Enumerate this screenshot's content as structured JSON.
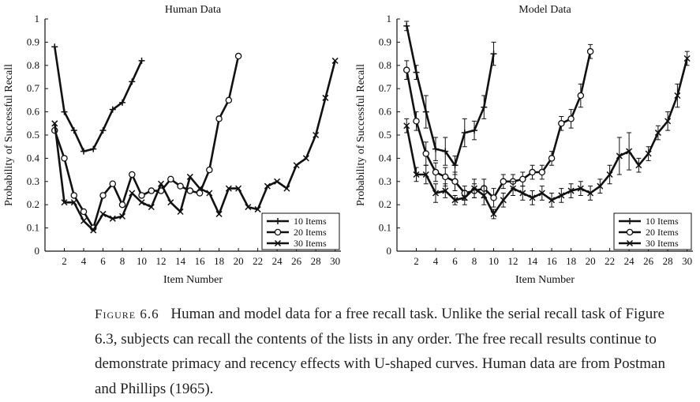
{
  "chart_data": [
    {
      "type": "line",
      "title": "Human Data",
      "xlabel": "Item Number",
      "ylabel": "Probability of Successful Recall",
      "xlim": [
        0,
        30.6
      ],
      "ylim": [
        0,
        1
      ],
      "xticks": [
        2,
        4,
        6,
        8,
        10,
        12,
        14,
        16,
        18,
        20,
        22,
        24,
        26,
        28,
        30
      ],
      "yticks": [
        0,
        0.1,
        0.2,
        0.3,
        0.4,
        0.5,
        0.6,
        0.7,
        0.8,
        0.9,
        1
      ],
      "ytick_labels": [
        "0",
        "0.1",
        "0.2",
        "0.3",
        "0.4",
        "0.5",
        "0.6",
        "0.7",
        "0.8",
        "0.9",
        "1"
      ],
      "legend_position": "bottom-right",
      "series": [
        {
          "name": "10 Items",
          "marker": "plus",
          "x": [
            1,
            2,
            3,
            4,
            5,
            6,
            7,
            8,
            9,
            10
          ],
          "values": [
            0.88,
            0.6,
            0.52,
            0.43,
            0.44,
            0.52,
            0.61,
            0.64,
            0.73,
            0.82
          ]
        },
        {
          "name": "20 Items",
          "marker": "circle",
          "x": [
            1,
            2,
            3,
            4,
            5,
            6,
            7,
            8,
            9,
            10,
            11,
            12,
            13,
            14,
            15,
            16,
            17,
            18,
            19,
            20
          ],
          "values": [
            0.52,
            0.4,
            0.24,
            0.17,
            0.1,
            0.24,
            0.29,
            0.2,
            0.33,
            0.24,
            0.26,
            0.26,
            0.31,
            0.28,
            0.26,
            0.25,
            0.35,
            0.57,
            0.65,
            0.84
          ]
        },
        {
          "name": "30 Items",
          "marker": "x",
          "x": [
            1,
            2,
            3,
            4,
            5,
            6,
            7,
            8,
            9,
            10,
            11,
            12,
            13,
            14,
            15,
            16,
            17,
            18,
            19,
            20,
            21,
            22,
            23,
            24,
            25,
            26,
            27,
            28,
            29,
            30
          ],
          "values": [
            0.55,
            0.21,
            0.21,
            0.13,
            0.09,
            0.16,
            0.14,
            0.15,
            0.25,
            0.21,
            0.19,
            0.29,
            0.21,
            0.17,
            0.32,
            0.27,
            0.25,
            0.16,
            0.27,
            0.27,
            0.19,
            0.18,
            0.28,
            0.3,
            0.27,
            0.37,
            0.4,
            0.5,
            0.66,
            0.82
          ]
        }
      ]
    },
    {
      "type": "line",
      "title": "Model Data",
      "xlabel": "Item Number",
      "ylabel": "Probability of Successful Recall",
      "xlim": [
        0,
        30.6
      ],
      "ylim": [
        0,
        1
      ],
      "xticks": [
        2,
        4,
        6,
        8,
        10,
        12,
        14,
        16,
        18,
        20,
        22,
        24,
        26,
        28,
        30
      ],
      "yticks": [
        0,
        0.1,
        0.2,
        0.3,
        0.4,
        0.5,
        0.6,
        0.7,
        0.8,
        0.9,
        1
      ],
      "ytick_labels": [
        "0",
        "0.1",
        "0.2",
        "0.3",
        "0.4",
        "0.5",
        "0.6",
        "0.7",
        "0.8",
        "0.9",
        "1"
      ],
      "legend_position": "bottom-right",
      "error_bars": true,
      "series": [
        {
          "name": "10 Items",
          "marker": "plus",
          "x": [
            1,
            2,
            3,
            4,
            5,
            6,
            7,
            8,
            9,
            10
          ],
          "values": [
            0.97,
            0.77,
            0.6,
            0.44,
            0.43,
            0.37,
            0.51,
            0.52,
            0.62,
            0.85
          ],
          "errors": [
            0.02,
            0.03,
            0.07,
            0.05,
            0.06,
            0.04,
            0.06,
            0.04,
            0.05,
            0.05
          ]
        },
        {
          "name": "20 Items",
          "marker": "circle",
          "x": [
            1,
            2,
            3,
            4,
            5,
            6,
            7,
            8,
            9,
            10,
            11,
            12,
            13,
            14,
            15,
            16,
            17,
            18,
            19,
            20
          ],
          "values": [
            0.78,
            0.56,
            0.42,
            0.34,
            0.32,
            0.3,
            0.25,
            0.26,
            0.27,
            0.23,
            0.3,
            0.3,
            0.31,
            0.34,
            0.34,
            0.4,
            0.55,
            0.57,
            0.67,
            0.86
          ],
          "errors": [
            0.04,
            0.04,
            0.05,
            0.04,
            0.04,
            0.04,
            0.03,
            0.03,
            0.04,
            0.04,
            0.03,
            0.03,
            0.03,
            0.03,
            0.03,
            0.03,
            0.03,
            0.04,
            0.05,
            0.03
          ]
        },
        {
          "name": "30 Items",
          "marker": "x",
          "x": [
            1,
            2,
            3,
            4,
            5,
            6,
            7,
            8,
            9,
            10,
            11,
            12,
            13,
            14,
            15,
            16,
            17,
            18,
            19,
            20,
            21,
            22,
            23,
            24,
            25,
            26,
            27,
            28,
            29,
            30
          ],
          "values": [
            0.54,
            0.33,
            0.33,
            0.25,
            0.26,
            0.22,
            0.23,
            0.27,
            0.24,
            0.16,
            0.22,
            0.27,
            0.25,
            0.23,
            0.25,
            0.22,
            0.24,
            0.26,
            0.27,
            0.25,
            0.28,
            0.33,
            0.41,
            0.43,
            0.37,
            0.42,
            0.51,
            0.56,
            0.67,
            0.83
          ],
          "errors": [
            0.03,
            0.03,
            0.04,
            0.04,
            0.03,
            0.02,
            0.03,
            0.04,
            0.04,
            0.02,
            0.03,
            0.03,
            0.03,
            0.03,
            0.03,
            0.03,
            0.03,
            0.03,
            0.03,
            0.03,
            0.03,
            0.04,
            0.08,
            0.08,
            0.03,
            0.03,
            0.03,
            0.04,
            0.05,
            0.03
          ]
        }
      ]
    }
  ],
  "caption": {
    "label": "Figure 6.6",
    "text": "Human and model data for a free recall task. Unlike the serial recall task of Figure 6.3, subjects can recall the contents of the lists in any order. The free recall results continue to demonstrate primacy and recency effects with U-shaped curves. Human data are from Postman and Phillips (1965)."
  }
}
